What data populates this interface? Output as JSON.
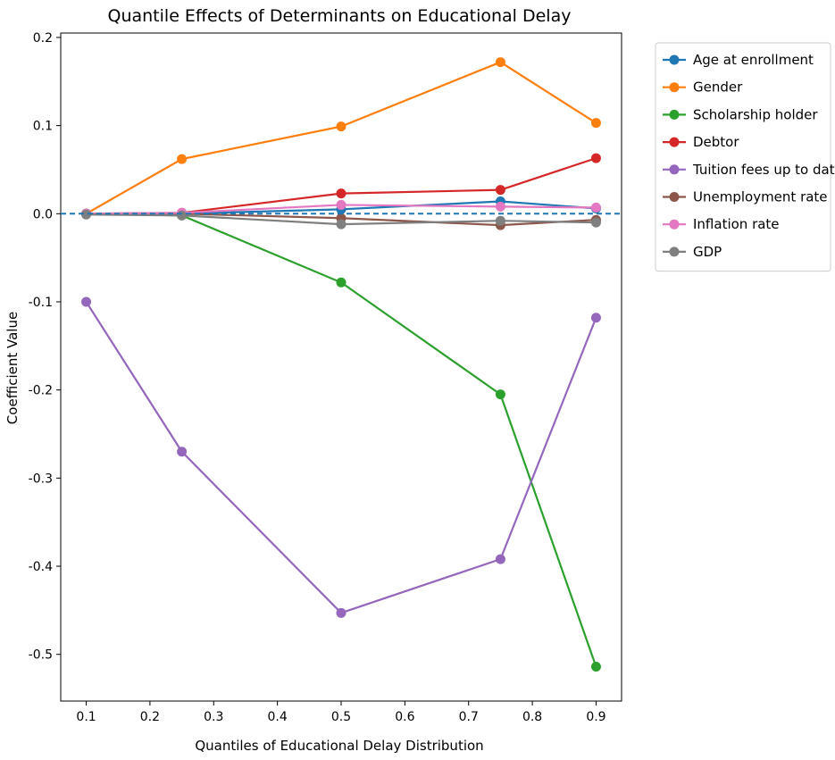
{
  "chart_data": {
    "type": "line",
    "title": "Quantile Effects of Determinants on Educational Delay",
    "xlabel": "Quantiles of Educational Delay Distribution",
    "ylabel": "Coefficient Value",
    "xlim": [
      0.06,
      0.94
    ],
    "ylim": [
      -0.553,
      0.205
    ],
    "xticks": [
      0.1,
      0.2,
      0.3,
      0.4,
      0.5,
      0.6,
      0.7,
      0.8,
      0.9
    ],
    "yticks": [
      0.2,
      0.1,
      0.0,
      -0.1,
      -0.2,
      -0.3,
      -0.4,
      -0.5
    ],
    "xtick_labels": [
      "0.1",
      "0.2",
      "0.3",
      "0.4",
      "0.5",
      "0.6",
      "0.7",
      "0.8",
      "0.9"
    ],
    "ytick_labels": [
      "0.2",
      "0.1",
      "0.0",
      "-0.1",
      "-0.2",
      "-0.3",
      "-0.4",
      "-0.5"
    ],
    "grid": false,
    "legend_position": "outside-right-top",
    "reference_line": {
      "y": 0,
      "style": "dashed",
      "color": "#1f77b4"
    },
    "x": [
      0.1,
      0.25,
      0.5,
      0.75,
      0.9
    ],
    "series": [
      {
        "name": "Age at enrollment",
        "color": "#1f77b4",
        "values": [
          0.0,
          0.0,
          0.005,
          0.014,
          0.006
        ]
      },
      {
        "name": "Gender",
        "color": "#ff7f0e",
        "values": [
          0.0,
          0.062,
          0.099,
          0.172,
          0.103
        ]
      },
      {
        "name": "Scholarship holder",
        "color": "#2ca02c",
        "values": [
          0.0,
          -0.002,
          -0.078,
          -0.205,
          -0.514
        ]
      },
      {
        "name": "Debtor",
        "color": "#d62728",
        "values": [
          0.0,
          0.001,
          0.023,
          0.027,
          0.063
        ]
      },
      {
        "name": "Tuition fees up to date",
        "color": "#9467bd",
        "values": [
          -0.1,
          -0.27,
          -0.453,
          -0.392,
          -0.118
        ]
      },
      {
        "name": "Unemployment rate",
        "color": "#8c564b",
        "values": [
          0.0,
          0.0,
          -0.005,
          -0.013,
          -0.007
        ]
      },
      {
        "name": "Inflation rate",
        "color": "#e377c2",
        "values": [
          0.0,
          0.001,
          0.01,
          0.008,
          0.007
        ]
      },
      {
        "name": "GDP",
        "color": "#7f7f7f",
        "values": [
          -0.001,
          -0.002,
          -0.012,
          -0.008,
          -0.01
        ]
      }
    ]
  }
}
